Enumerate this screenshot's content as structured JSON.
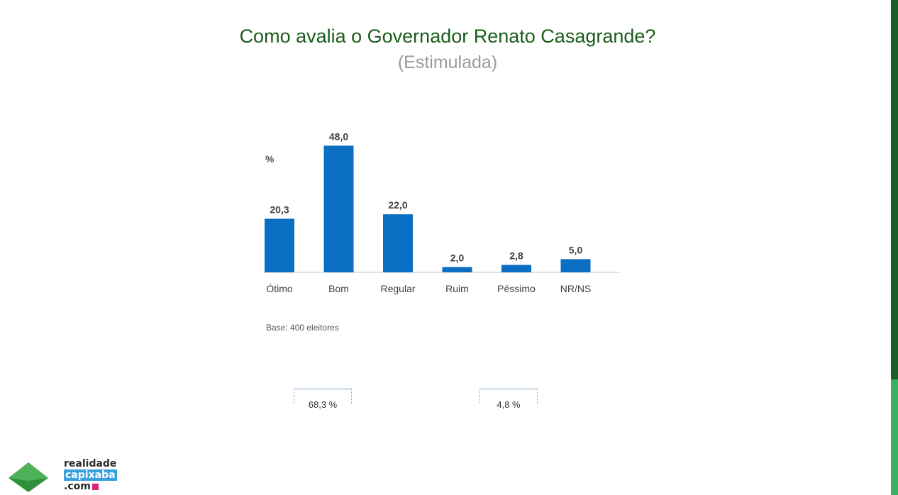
{
  "header": {
    "title": "Como avalia o Governador Renato Casagrande?",
    "subtitle": "(Estimulada)"
  },
  "chart_data": {
    "type": "bar",
    "title": "Como avalia o Governador Renato Casagrande?",
    "subtitle": "(Estimulada)",
    "ylabel": "%",
    "categories": [
      "Ótimo",
      "Bom",
      "Regular",
      "Ruim",
      "Péssimo",
      "NR/NS"
    ],
    "values": [
      20.3,
      48.0,
      22.0,
      2.0,
      2.8,
      5.0
    ],
    "value_labels": [
      "20,3",
      "48,0",
      "22,0",
      "2,0",
      "2,8",
      "5,0"
    ],
    "ylim": [
      0,
      50
    ],
    "grid": false,
    "bar_color": "#0a6fc2"
  },
  "notes": {
    "base": "Base: 400 eleitores"
  },
  "brackets": [
    {
      "label": "68,3 %"
    },
    {
      "label": "4,8 %"
    }
  ],
  "logo": {
    "line1": "realidade",
    "line2": "capixaba",
    "line3": ".com",
    "colors": {
      "green": "#2f8f3a",
      "blue": "#3aa0dc",
      "pink": "#e0207a"
    }
  },
  "accent_colors": {
    "title": "#1a5c1a",
    "side_dark": "#1d5e2a",
    "side_light": "#3ab060"
  }
}
